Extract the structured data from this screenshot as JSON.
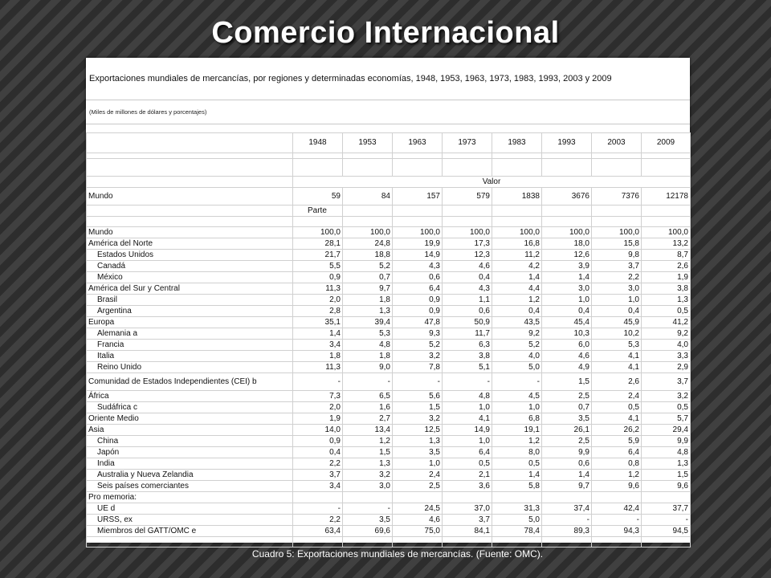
{
  "title": "Comercio Internacional",
  "table_heading": "Exportaciones mundiales de mercancías, por regiones y determinadas economías, 1948, 1953, 1963, 1973, 1983, 1993, 2003 y 2009",
  "table_subheading": "(Miles de millones de dólares y porcentajes)",
  "years": [
    "1948",
    "1953",
    "1963",
    "1973",
    "1983",
    "1993",
    "2003",
    "2009"
  ],
  "valor_label": "Valor",
  "parte_label": "Parte",
  "mundo_valor": {
    "label": "Mundo",
    "values": [
      "59",
      "84",
      "157",
      "579",
      "1838",
      "3676",
      "7376",
      "12178"
    ]
  },
  "rows": [
    {
      "label": "Mundo",
      "indent": false,
      "values": [
        "100,0",
        "100,0",
        "100,0",
        "100,0",
        "100,0",
        "100,0",
        "100,0",
        "100,0"
      ]
    },
    {
      "label": "América del Norte",
      "indent": false,
      "values": [
        "28,1",
        "24,8",
        "19,9",
        "17,3",
        "16,8",
        "18,0",
        "15,8",
        "13,2"
      ]
    },
    {
      "label": "Estados Unidos",
      "indent": true,
      "values": [
        "21,7",
        "18,8",
        "14,9",
        "12,3",
        "11,2",
        "12,6",
        "9,8",
        "8,7"
      ]
    },
    {
      "label": "Canadá",
      "indent": true,
      "values": [
        "5,5",
        "5,2",
        "4,3",
        "4,6",
        "4,2",
        "3,9",
        "3,7",
        "2,6"
      ]
    },
    {
      "label": "México",
      "indent": true,
      "values": [
        "0,9",
        "0,7",
        "0,6",
        "0,4",
        "1,4",
        "1,4",
        "2,2",
        "1,9"
      ]
    },
    {
      "label": "América del Sur y Central",
      "indent": false,
      "values": [
        "11,3",
        "9,7",
        "6,4",
        "4,3",
        "4,4",
        "3,0",
        "3,0",
        "3,8"
      ]
    },
    {
      "label": "Brasil",
      "indent": true,
      "values": [
        "2,0",
        "1,8",
        "0,9",
        "1,1",
        "1,2",
        "1,0",
        "1,0",
        "1,3"
      ]
    },
    {
      "label": "Argentina",
      "indent": true,
      "values": [
        "2,8",
        "1,3",
        "0,9",
        "0,6",
        "0,4",
        "0,4",
        "0,4",
        "0,5"
      ]
    },
    {
      "label": "Europa",
      "indent": false,
      "values": [
        "35,1",
        "39,4",
        "47,8",
        "50,9",
        "43,5",
        "45,4",
        "45,9",
        "41,2"
      ]
    },
    {
      "label": "Alemania  a",
      "indent": true,
      "values": [
        "1,4",
        "5,3",
        "9,3",
        "11,7",
        "9,2",
        "10,3",
        "10,2",
        "9,2"
      ]
    },
    {
      "label": "Francia",
      "indent": true,
      "values": [
        "3,4",
        "4,8",
        "5,2",
        "6,3",
        "5,2",
        "6,0",
        "5,3",
        "4,0"
      ]
    },
    {
      "label": "Italia",
      "indent": true,
      "values": [
        "1,8",
        "1,8",
        "3,2",
        "3,8",
        "4,0",
        "4,6",
        "4,1",
        "3,3"
      ]
    },
    {
      "label": "Reino Unido",
      "indent": true,
      "values": [
        "11,3",
        "9,0",
        "7,8",
        "5,1",
        "5,0",
        "4,9",
        "4,1",
        "2,9"
      ]
    },
    {
      "label": "Comunidad de Estados Independientes (CEI)  b",
      "indent": false,
      "tall": true,
      "values": [
        "-",
        "-",
        "-",
        "-",
        "-",
        "1,5",
        "2,6",
        "3,7"
      ]
    },
    {
      "label": "África",
      "indent": false,
      "values": [
        "7,3",
        "6,5",
        "5,6",
        "4,8",
        "4,5",
        "2,5",
        "2,4",
        "3,2"
      ]
    },
    {
      "label": "Sudáfrica  c",
      "indent": true,
      "values": [
        "2,0",
        "1,6",
        "1,5",
        "1,0",
        "1,0",
        "0,7",
        "0,5",
        "0,5"
      ]
    },
    {
      "label": "Oriente Medio",
      "indent": false,
      "values": [
        "1,9",
        "2,7",
        "3,2",
        "4,1",
        "6,8",
        "3,5",
        "4,1",
        "5,7"
      ]
    },
    {
      "label": "Asia",
      "indent": false,
      "values": [
        "14,0",
        "13,4",
        "12,5",
        "14,9",
        "19,1",
        "26,1",
        "26,2",
        "29,4"
      ]
    },
    {
      "label": "China",
      "indent": true,
      "values": [
        "0,9",
        "1,2",
        "1,3",
        "1,0",
        "1,2",
        "2,5",
        "5,9",
        "9,9"
      ]
    },
    {
      "label": "Japón",
      "indent": true,
      "values": [
        "0,4",
        "1,5",
        "3,5",
        "6,4",
        "8,0",
        "9,9",
        "6,4",
        "4,8"
      ]
    },
    {
      "label": "India",
      "indent": true,
      "values": [
        "2,2",
        "1,3",
        "1,0",
        "0,5",
        "0,5",
        "0,6",
        "0,8",
        "1,3"
      ]
    },
    {
      "label": "Australia y Nueva Zelandia",
      "indent": true,
      "values": [
        "3,7",
        "3,2",
        "2,4",
        "2,1",
        "1,4",
        "1,4",
        "1,2",
        "1,5"
      ]
    },
    {
      "label": "Seis países comerciantes",
      "indent": true,
      "values": [
        "3,4",
        "3,0",
        "2,5",
        "3,6",
        "5,8",
        "9,7",
        "9,6",
        "9,6"
      ]
    }
  ],
  "memo_label": "Pro memoria:",
  "memo_rows": [
    {
      "label": "UE  d",
      "indent": true,
      "values": [
        "-",
        "-",
        "24,5",
        "37,0",
        "31,3",
        "37,4",
        "42,4",
        "37,7"
      ]
    },
    {
      "label": "URSS, ex",
      "indent": true,
      "values": [
        "2,2",
        "3,5",
        "4,6",
        "3,7",
        "5,0",
        "-",
        "-",
        "-"
      ]
    },
    {
      "label": "Miembros del GATT/OMC  e",
      "indent": true,
      "values": [
        "63,4",
        "69,6",
        "75,0",
        "84,1",
        "78,4",
        "89,3",
        "94,3",
        "94,5"
      ]
    }
  ],
  "caption": "Cuadro 5: Exportaciones mundiales de mercancías. (Fuente: OMC)."
}
